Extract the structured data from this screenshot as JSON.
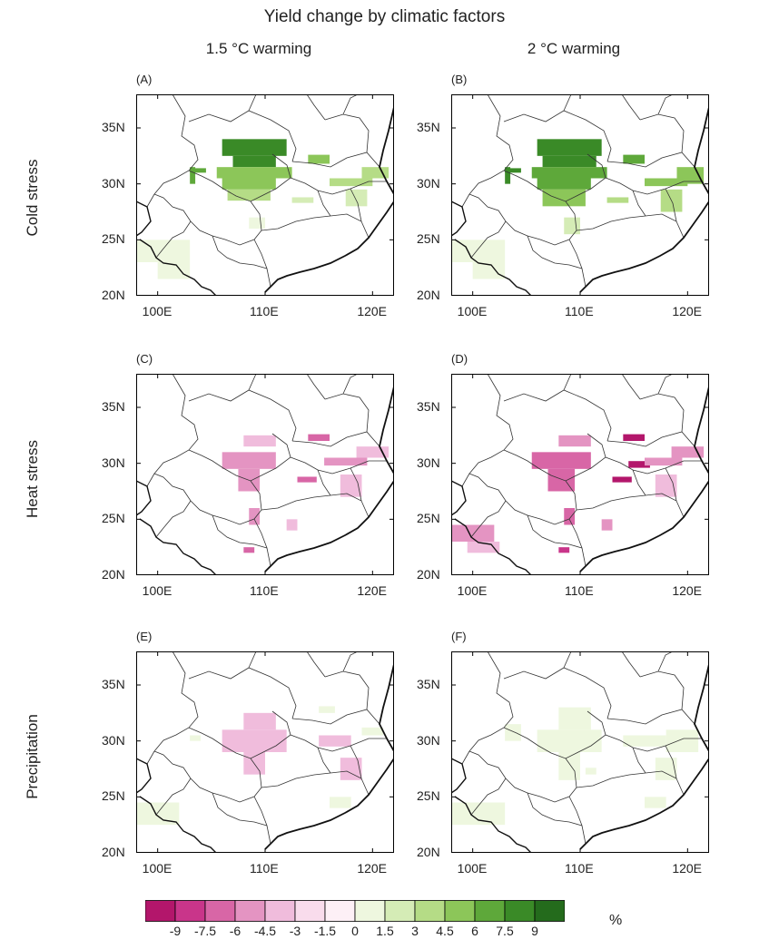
{
  "title": "Yield change by climatic factors",
  "columns": [
    "1.5 °C warming",
    "2 °C warming"
  ],
  "rows": [
    "Cold stress",
    "Heat stress",
    "Precipitation"
  ],
  "panel_labels": [
    "(A)",
    "(B)",
    "(C)",
    "(D)",
    "(E)",
    "(F)"
  ],
  "lon_ticks": [
    "100E",
    "110E",
    "120E"
  ],
  "lat_ticks": [
    "35N",
    "30N",
    "25N",
    "20N"
  ],
  "colorbar": {
    "unit": "%",
    "tick_labels": [
      "-9",
      "-7.5",
      "-6",
      "-4.5",
      "-3",
      "-1.5",
      "0",
      "1.5",
      "3",
      "4.5",
      "6",
      "7.5",
      "9"
    ],
    "colors": [
      "#b3166b",
      "#c9358a",
      "#d866a6",
      "#e494c2",
      "#f0bcdc",
      "#f9dcec",
      "#fdf0f6",
      "#eef7df",
      "#d5ecb6",
      "#b5dc86",
      "#8cc659",
      "#5ea83a",
      "#3a8a27",
      "#246b1c"
    ]
  },
  "chart_data": {
    "type": "heatmap",
    "lon_range": [
      98,
      122
    ],
    "lat_range": [
      20,
      38
    ],
    "panels": [
      {
        "label": "(A)",
        "cells": [
          {
            "lon": 106,
            "lat": 32.5,
            "w": 6,
            "h": 1.5,
            "v": 9
          },
          {
            "lon": 107,
            "lat": 31.5,
            "w": 4,
            "h": 1,
            "v": 9
          },
          {
            "lon": 105.5,
            "lat": 30.5,
            "w": 7,
            "h": 1,
            "v": 6
          },
          {
            "lon": 106,
            "lat": 29.5,
            "w": 5,
            "h": 1,
            "v": 6
          },
          {
            "lon": 106.5,
            "lat": 28.5,
            "w": 4,
            "h": 1,
            "v": 4.5
          },
          {
            "lon": 103,
            "lat": 30,
            "w": 0.5,
            "h": 1.5,
            "v": 7.5
          },
          {
            "lon": 103,
            "lat": 31,
            "w": 1.5,
            "h": 0.4,
            "v": 7.5
          },
          {
            "lon": 114,
            "lat": 31.8,
            "w": 2,
            "h": 0.8,
            "v": 6
          },
          {
            "lon": 116,
            "lat": 29.8,
            "w": 4,
            "h": 0.7,
            "v": 4.5
          },
          {
            "lon": 119,
            "lat": 30.5,
            "w": 2.5,
            "h": 1,
            "v": 4.5
          },
          {
            "lon": 117.5,
            "lat": 28,
            "w": 2,
            "h": 1.5,
            "v": 3
          },
          {
            "lon": 112.5,
            "lat": 28.3,
            "w": 2,
            "h": 0.5,
            "v": 3
          },
          {
            "lon": 108.5,
            "lat": 26,
            "w": 1.5,
            "h": 1,
            "v": 1.5
          },
          {
            "lon": 98,
            "lat": 23,
            "w": 5,
            "h": 2,
            "v": 1.5
          },
          {
            "lon": 100,
            "lat": 21.5,
            "w": 3,
            "h": 1.5,
            "v": 1.5
          }
        ]
      },
      {
        "label": "(B)",
        "cells": [
          {
            "lon": 106,
            "lat": 32.5,
            "w": 6,
            "h": 1.5,
            "v": 9
          },
          {
            "lon": 106.5,
            "lat": 31.5,
            "w": 5,
            "h": 1,
            "v": 9
          },
          {
            "lon": 105.5,
            "lat": 30.5,
            "w": 7,
            "h": 1,
            "v": 7.5
          },
          {
            "lon": 106,
            "lat": 29.5,
            "w": 5,
            "h": 1,
            "v": 7.5
          },
          {
            "lon": 106.5,
            "lat": 28,
            "w": 4,
            "h": 1.5,
            "v": 6
          },
          {
            "lon": 103,
            "lat": 30,
            "w": 0.5,
            "h": 1.5,
            "v": 9
          },
          {
            "lon": 103,
            "lat": 31,
            "w": 1.5,
            "h": 0.4,
            "v": 9
          },
          {
            "lon": 114,
            "lat": 31.8,
            "w": 2,
            "h": 0.8,
            "v": 7.5
          },
          {
            "lon": 116,
            "lat": 29.8,
            "w": 4,
            "h": 0.7,
            "v": 6
          },
          {
            "lon": 119,
            "lat": 30,
            "w": 2.5,
            "h": 1.5,
            "v": 6
          },
          {
            "lon": 117.5,
            "lat": 27.5,
            "w": 2,
            "h": 2,
            "v": 4.5
          },
          {
            "lon": 112.5,
            "lat": 28.3,
            "w": 2,
            "h": 0.5,
            "v": 4.5
          },
          {
            "lon": 108.5,
            "lat": 25.5,
            "w": 1.5,
            "h": 1.5,
            "v": 3
          },
          {
            "lon": 98,
            "lat": 23,
            "w": 5,
            "h": 2,
            "v": 1.5
          },
          {
            "lon": 100,
            "lat": 21.5,
            "w": 3,
            "h": 1.5,
            "v": 1.5
          }
        ]
      },
      {
        "label": "(C)",
        "cells": [
          {
            "lon": 108,
            "lat": 31.5,
            "w": 3,
            "h": 1,
            "v": -1.5
          },
          {
            "lon": 106,
            "lat": 29.5,
            "w": 5,
            "h": 1.5,
            "v": -3
          },
          {
            "lon": 107.5,
            "lat": 27.5,
            "w": 2,
            "h": 2,
            "v": -3
          },
          {
            "lon": 114,
            "lat": 32,
            "w": 2,
            "h": 0.6,
            "v": -4.5
          },
          {
            "lon": 113,
            "lat": 28.3,
            "w": 1.8,
            "h": 0.5,
            "v": -4.5
          },
          {
            "lon": 115.5,
            "lat": 29.8,
            "w": 4,
            "h": 0.7,
            "v": -3
          },
          {
            "lon": 118.5,
            "lat": 30.5,
            "w": 3,
            "h": 1,
            "v": -1.5
          },
          {
            "lon": 117,
            "lat": 27,
            "w": 2,
            "h": 2,
            "v": -1.5
          },
          {
            "lon": 108.5,
            "lat": 24.5,
            "w": 1,
            "h": 1.5,
            "v": -3
          },
          {
            "lon": 108,
            "lat": 22,
            "w": 1,
            "h": 0.5,
            "v": -4.5
          },
          {
            "lon": 112,
            "lat": 24,
            "w": 1,
            "h": 1,
            "v": -1.5
          }
        ]
      },
      {
        "label": "(D)",
        "cells": [
          {
            "lon": 108,
            "lat": 31.5,
            "w": 3,
            "h": 1,
            "v": -3
          },
          {
            "lon": 105.5,
            "lat": 29.5,
            "w": 5.5,
            "h": 1.5,
            "v": -4.5
          },
          {
            "lon": 107,
            "lat": 27.5,
            "w": 2.5,
            "h": 2,
            "v": -4.5
          },
          {
            "lon": 114,
            "lat": 32,
            "w": 2,
            "h": 0.6,
            "v": -9
          },
          {
            "lon": 113,
            "lat": 28.3,
            "w": 1.8,
            "h": 0.5,
            "v": -7.5
          },
          {
            "lon": 114.5,
            "lat": 29.6,
            "w": 2,
            "h": 0.6,
            "v": -7.5
          },
          {
            "lon": 116,
            "lat": 29.8,
            "w": 3.5,
            "h": 0.7,
            "v": -3
          },
          {
            "lon": 118.5,
            "lat": 30.5,
            "w": 3,
            "h": 1,
            "v": -3
          },
          {
            "lon": 117,
            "lat": 27,
            "w": 2,
            "h": 2,
            "v": -1.5
          },
          {
            "lon": 108.5,
            "lat": 24.5,
            "w": 1,
            "h": 1.5,
            "v": -4.5
          },
          {
            "lon": 108,
            "lat": 22,
            "w": 1,
            "h": 0.5,
            "v": -6
          },
          {
            "lon": 98,
            "lat": 23,
            "w": 4,
            "h": 1.5,
            "v": -3
          },
          {
            "lon": 99.5,
            "lat": 22,
            "w": 3,
            "h": 1,
            "v": -1.5
          },
          {
            "lon": 112,
            "lat": 24,
            "w": 1,
            "h": 1,
            "v": -3
          }
        ]
      },
      {
        "label": "(E)",
        "cells": [
          {
            "lon": 108,
            "lat": 31,
            "w": 3,
            "h": 1.5,
            "v": -1.5
          },
          {
            "lon": 106,
            "lat": 29,
            "w": 6,
            "h": 2,
            "v": -1.5
          },
          {
            "lon": 108,
            "lat": 27,
            "w": 2,
            "h": 2,
            "v": -1.5
          },
          {
            "lon": 115,
            "lat": 29.5,
            "w": 3,
            "h": 1,
            "v": -1.5
          },
          {
            "lon": 117,
            "lat": 26.5,
            "w": 2,
            "h": 2,
            "v": -1.5
          },
          {
            "lon": 103,
            "lat": 30,
            "w": 1,
            "h": 0.5,
            "v": 1.5
          },
          {
            "lon": 115,
            "lat": 32.5,
            "w": 1.5,
            "h": 0.6,
            "v": 1.5
          },
          {
            "lon": 119,
            "lat": 30.5,
            "w": 2,
            "h": 0.7,
            "v": 1.5
          },
          {
            "lon": 98,
            "lat": 22.5,
            "w": 4,
            "h": 2,
            "v": 1.5
          },
          {
            "lon": 116,
            "lat": 24,
            "w": 2,
            "h": 1,
            "v": 1.5
          }
        ]
      },
      {
        "label": "(F)",
        "cells": [
          {
            "lon": 108,
            "lat": 31,
            "w": 3,
            "h": 2,
            "v": 1.5
          },
          {
            "lon": 106,
            "lat": 29,
            "w": 6,
            "h": 2,
            "v": 1.5
          },
          {
            "lon": 108,
            "lat": 26.5,
            "w": 2,
            "h": 2.5,
            "v": 1.5
          },
          {
            "lon": 103,
            "lat": 30,
            "w": 1.5,
            "h": 1.5,
            "v": 1.5
          },
          {
            "lon": 114,
            "lat": 29.5,
            "w": 4,
            "h": 1,
            "v": 1.5
          },
          {
            "lon": 118,
            "lat": 29,
            "w": 3,
            "h": 2,
            "v": 1.5
          },
          {
            "lon": 117,
            "lat": 26.5,
            "w": 2,
            "h": 2,
            "v": 1.5
          },
          {
            "lon": 98,
            "lat": 22.5,
            "w": 5,
            "h": 2,
            "v": 1.5
          },
          {
            "lon": 116,
            "lat": 24,
            "w": 2,
            "h": 1,
            "v": 1.5
          },
          {
            "lon": 110.5,
            "lat": 27,
            "w": 1,
            "h": 0.6,
            "v": 1.5
          }
        ]
      }
    ]
  }
}
